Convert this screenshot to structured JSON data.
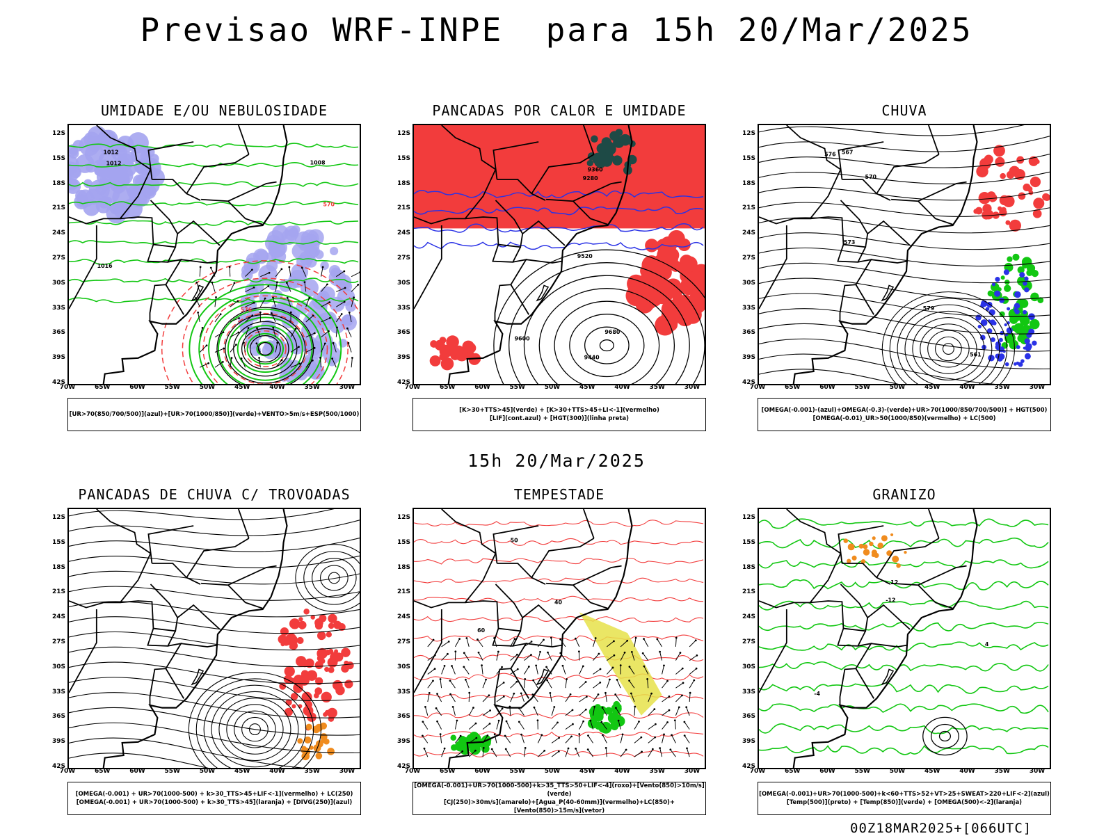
{
  "title": "Previsao WRF-INPE  para 15h 20/Mar/2025",
  "middle_date": "15h 20/Mar/2025",
  "run_stamp": "00Z18MAR2025+[066UTC]",
  "lat_ticks": [
    "12S",
    "15S",
    "18S",
    "21S",
    "24S",
    "27S",
    "30S",
    "33S",
    "36S",
    "39S",
    "42S"
  ],
  "lon_ticks": [
    "70W",
    "65W",
    "60W",
    "55W",
    "50W",
    "45W",
    "40W",
    "35W",
    "30W"
  ],
  "panels": [
    {
      "title": "UMIDADE E/OU NEBULOSIDADE",
      "legend": [
        "[UR>70(850/700/500)](azul)+[UR>70(1000/850)](verde)+VENTO>5m/s+ESP(500/1000)"
      ],
      "labels": [
        "1012",
        "1012",
        "1016",
        "1008",
        "570",
        "576"
      ]
    },
    {
      "title": "PANCADAS POR CALOR E UMIDADE",
      "legend": [
        "[K>30+TTS>45](verde) + [K>30+TTS>45+LI<-1](vermelho)",
        "[LIF](cont.azul) + [HGT(300)](linha preta)"
      ],
      "labels": [
        "9600",
        "9520",
        "9440",
        "9360",
        "9280",
        "9680"
      ]
    },
    {
      "title": "CHUVA",
      "legend": [
        "[OMEGA(-0.001)-(azul)+OMEGA(-0.3)-(verde)+UR>70(1000/850/700/500)] + HGT(500)",
        "[OMEGA(-0.01)_UR>50(1000/850)(vermelho) + LC(500)"
      ],
      "labels": [
        "579",
        "576",
        "573",
        "570",
        "567",
        "561"
      ]
    },
    {
      "title": "PANCADAS DE CHUVA C/ TROVOADAS",
      "legend": [
        "[OMEGA(-0.001) + UR>70(1000-500) + k>30_TTS>45+LIF<-1](vermelho) + LC(250)",
        "[OMEGA(-0.001) + UR>70(1000-500) + k>30_TTS>45](laranja) + [DIVG(250)](azul)"
      ],
      "labels": []
    },
    {
      "title": "TEMPESTADE",
      "legend": [
        "[OMEGA(-0.001)+UR>70(1000-500)+k>35_TTS>50+LIF<-4](roxo)+[Vento(850)>10m/s](verde)",
        "[CJ(250)>30m/s](amarelo)+[Agua_P(40-60mm)](vermelho)+LC(850)+[Vento(850)>15m/s](vetor)"
      ],
      "labels": [
        "60",
        "50",
        "40"
      ]
    },
    {
      "title": "GRANIZO",
      "legend": [
        "[OMEGA(-0.001)+UR>70(1000-500)+k<60+TTS>52+VT>25+SWEAT>220+LIF<-2](azul)",
        "[Temp(500)](preto) + [Temp(850)](verde) + [OMEGA(500)<-2](laranja)"
      ],
      "labels": [
        "-12",
        "4",
        "-4",
        "12"
      ]
    }
  ],
  "colors": {
    "red": "#f23c3c",
    "green": "#12c712",
    "blue": "#2a32e6",
    "lavender": "#a4a4f0",
    "darkgreen": "#1e4a46",
    "yellow": "#e6e24a",
    "orange": "#f08c1e",
    "black": "#000000"
  }
}
